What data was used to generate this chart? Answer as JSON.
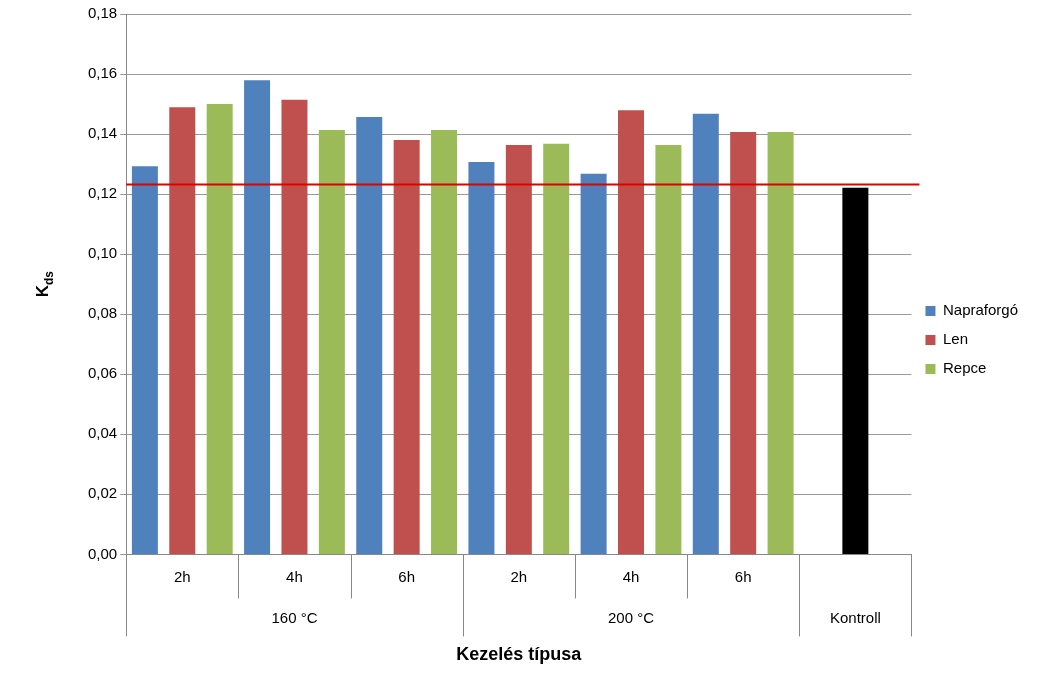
{
  "chart_data": {
    "type": "bar",
    "xlabel": "Kezelés típusa",
    "ylabel": "K$_{ds}$",
    "categories": [
      "2h",
      "4h",
      "6h",
      "2h",
      "4h",
      "6h",
      null
    ],
    "series": [
      {
        "name": "Napraforgó",
        "color": "#4f81bd",
        "values": [
          0.1293,
          0.1579,
          0.1457,
          0.1307,
          0.1268,
          0.1468,
          null
        ]
      },
      {
        "name": "Len",
        "color": "#c0504d",
        "values": [
          0.1489,
          0.1514,
          0.138,
          0.1364,
          0.1479,
          0.1407,
          null
        ]
      },
      {
        "name": "Repce",
        "color": "#9bbb59",
        "values": [
          0.15,
          0.1414,
          0.1414,
          0.1368,
          0.1364,
          0.1407,
          null
        ]
      },
      {
        "color": "#000000",
        "values": [
          null,
          null,
          null,
          null,
          null,
          null,
          0.1221
        ]
      }
    ],
    "ylim": [
      0,
      0.18
    ],
    "yticks": [
      {
        "value": 0,
        "label": "0,00"
      },
      {
        "value": 0.02,
        "label": "0,02"
      },
      {
        "value": 0.04,
        "label": "0,04"
      },
      {
        "value": 0.06,
        "label": "0,06"
      },
      {
        "value": 0.08,
        "label": "0,08"
      },
      {
        "value": 0.1,
        "label": "0,10"
      },
      {
        "value": 0.12,
        "label": "0,12"
      },
      {
        "value": 0.14,
        "label": "0,14"
      },
      {
        "value": 0.16,
        "label": "0,16"
      },
      {
        "value": 0.18,
        "label": "0,18"
      }
    ],
    "ref_lines": [
      {
        "axis": "y",
        "value": 0.1232,
        "color": "#e00000"
      }
    ],
    "annotations": [
      "160 °C",
      "200 °C",
      "Kontroll"
    ],
    "grid": "y",
    "legend": "right"
  }
}
